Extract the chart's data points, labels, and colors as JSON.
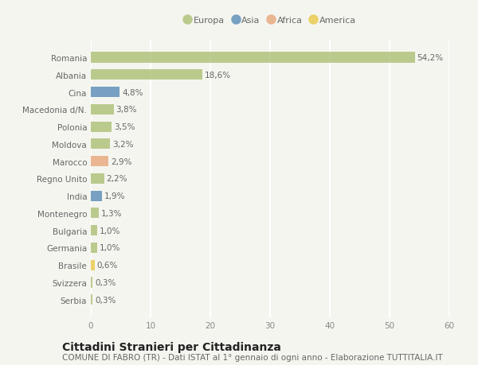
{
  "categories": [
    "Romania",
    "Albania",
    "Cina",
    "Macedonia d/N.",
    "Polonia",
    "Moldova",
    "Marocco",
    "Regno Unito",
    "India",
    "Montenegro",
    "Bulgaria",
    "Germania",
    "Brasile",
    "Svizzera",
    "Serbia"
  ],
  "values": [
    54.2,
    18.6,
    4.8,
    3.8,
    3.5,
    3.2,
    2.9,
    2.2,
    1.9,
    1.3,
    1.0,
    1.0,
    0.6,
    0.3,
    0.3
  ],
  "labels": [
    "54,2%",
    "18,6%",
    "4,8%",
    "3,8%",
    "3,5%",
    "3,2%",
    "2,9%",
    "2,2%",
    "1,9%",
    "1,3%",
    "1,0%",
    "1,0%",
    "0,6%",
    "0,3%",
    "0,3%"
  ],
  "colors": [
    "#adc178",
    "#adc178",
    "#5b8db8",
    "#adc178",
    "#adc178",
    "#adc178",
    "#e8a87c",
    "#adc178",
    "#5b8db8",
    "#adc178",
    "#adc178",
    "#adc178",
    "#e8c94a",
    "#adc178",
    "#adc178"
  ],
  "legend_labels": [
    "Europa",
    "Asia",
    "Africa",
    "America"
  ],
  "legend_colors": [
    "#adc178",
    "#5b8db8",
    "#e8a87c",
    "#e8c94a"
  ],
  "xlim": [
    0,
    60
  ],
  "xticks": [
    0,
    10,
    20,
    30,
    40,
    50,
    60
  ],
  "title": "Cittadini Stranieri per Cittadinanza",
  "subtitle": "COMUNE DI FABRO (TR) - Dati ISTAT al 1° gennaio di ogni anno - Elaborazione TUTTITALIA.IT",
  "bg_color": "#f5f5f0",
  "bar_height": 0.6,
  "grid_color": "#ffffff",
  "title_fontsize": 10,
  "subtitle_fontsize": 7.5,
  "label_fontsize": 7.5,
  "tick_fontsize": 7.5,
  "legend_fontsize": 8
}
